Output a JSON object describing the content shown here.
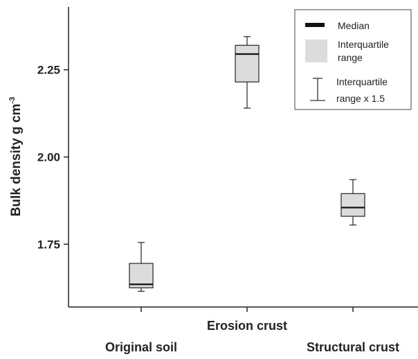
{
  "chart_data": {
    "type": "box",
    "ylabel": "Bulk density g cm",
    "ylabel_superscript": "-3",
    "ylim": [
      1.57,
      2.43
    ],
    "yticks": [
      "1.75",
      "2.00",
      "2.25"
    ],
    "categories": [
      "Original soil",
      "Erosion crust",
      "Structural crust"
    ],
    "boxes": [
      {
        "category": "Original soil",
        "whisker_low": 1.615,
        "q1": 1.625,
        "median": 1.635,
        "q3": 1.695,
        "whisker_high": 1.755
      },
      {
        "category": "Erosion crust",
        "whisker_low": 2.14,
        "q1": 2.215,
        "median": 2.295,
        "q3": 2.32,
        "whisker_high": 2.345
      },
      {
        "category": "Structural crust",
        "whisker_low": 1.805,
        "q1": 1.83,
        "median": 1.855,
        "q3": 1.895,
        "whisker_high": 1.935
      }
    ],
    "grid": false,
    "legend_position": "top-right",
    "legend": {
      "median": "Median",
      "iqr_line1": "Interquartile",
      "iqr_line2": "range",
      "whisker_line1": "Interquartile",
      "whisker_line2": "range x 1.5"
    },
    "colors": {
      "box_fill": "#dcdcdc",
      "stroke": "#333333",
      "median": "#111111"
    }
  }
}
